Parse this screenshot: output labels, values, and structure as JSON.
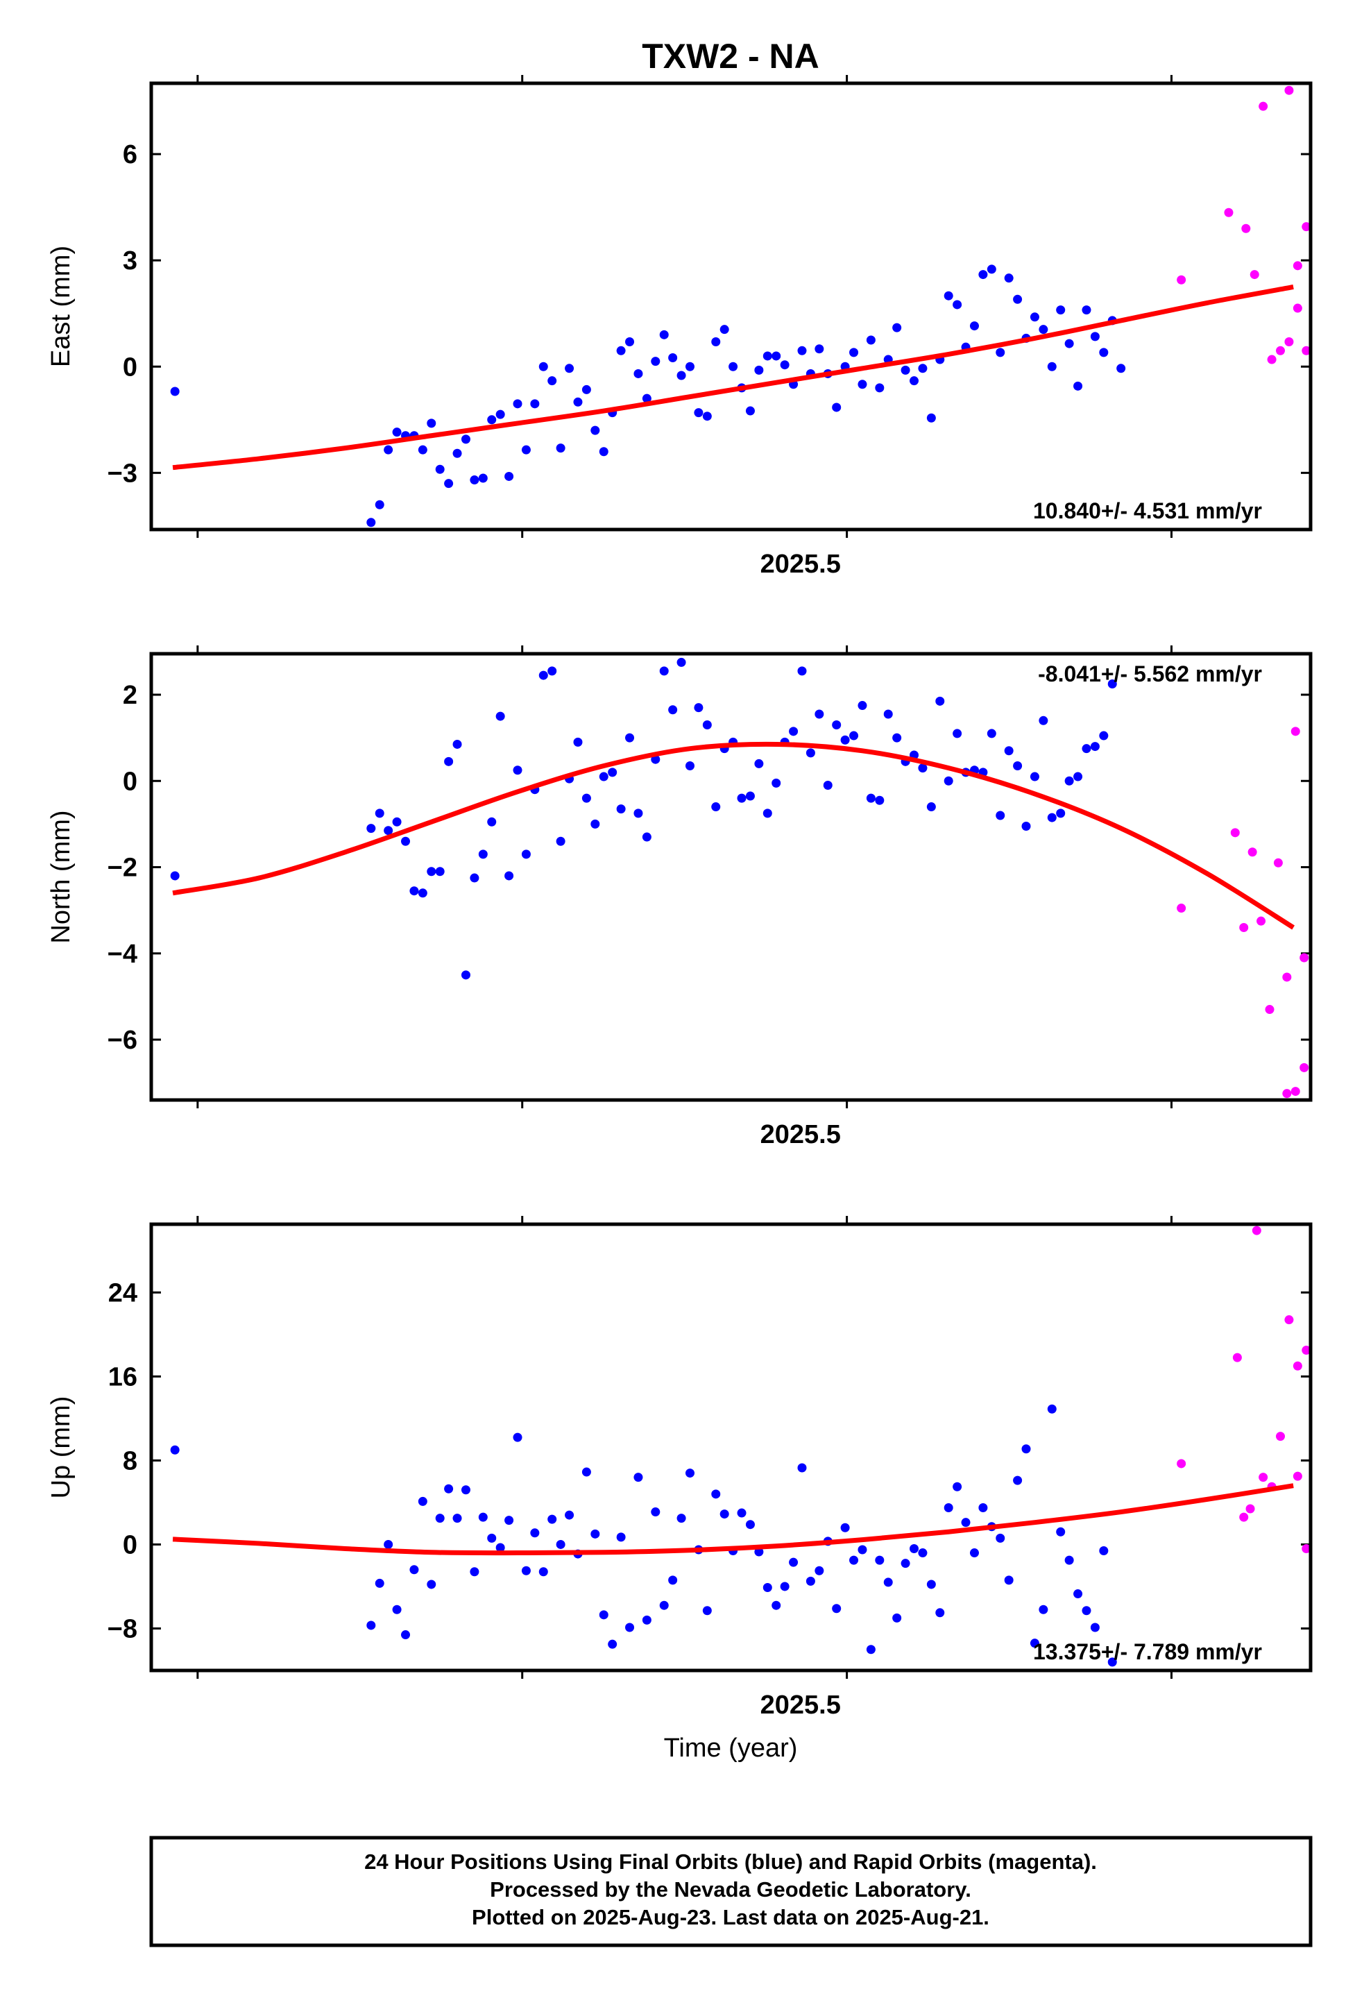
{
  "title": "TXW2 - NA",
  "xlabel": "Time (year)",
  "footer": [
    "24 Hour Positions Using Final Orbits (blue) and Rapid Orbits (magenta).",
    "Processed by the Nevada Geodetic Laboratory.",
    "Plotted on 2025-Aug-23. Last data on 2025-Aug-21."
  ],
  "colors": {
    "final": "#0000ff",
    "rapid": "#ff00ff",
    "fit": "#ff0000",
    "frame": "#000000"
  },
  "chart_data": [
    {
      "type": "scatter",
      "name": "east",
      "ylabel": "East (mm)",
      "rate_label": "10.840+/- 4.531 mm/yr",
      "rate_position": "bottom-right",
      "xlim": [
        2025.13,
        2025.668
      ],
      "ylim": [
        -4.6,
        8.0
      ],
      "yticks": [
        -3,
        0,
        3,
        6
      ],
      "ytick_labels": [
        "−3",
        "0",
        "3",
        "6"
      ],
      "xticks": [
        2025.5
      ],
      "xtick_labels": [
        "2025.5"
      ],
      "fit": {
        "x": [
          2025.14,
          2025.18,
          2025.22,
          2025.26,
          2025.3,
          2025.34,
          2025.38,
          2025.42,
          2025.46,
          2025.5,
          2025.54,
          2025.58,
          2025.62,
          2025.66
        ],
        "y": [
          -2.85,
          -2.6,
          -2.3,
          -1.95,
          -1.6,
          -1.25,
          -0.85,
          -0.45,
          -0.05,
          0.35,
          0.8,
          1.3,
          1.8,
          2.25
        ]
      },
      "final": {
        "x": [
          2025.141,
          2025.232,
          2025.236,
          2025.24,
          2025.244,
          2025.248,
          2025.252,
          2025.256,
          2025.26,
          2025.264,
          2025.268,
          2025.272,
          2025.276,
          2025.28,
          2025.284,
          2025.288,
          2025.292,
          2025.296,
          2025.3,
          2025.304,
          2025.308,
          2025.312,
          2025.316,
          2025.32,
          2025.324,
          2025.328,
          2025.332,
          2025.336,
          2025.34,
          2025.344,
          2025.348,
          2025.352,
          2025.356,
          2025.36,
          2025.364,
          2025.368,
          2025.372,
          2025.376,
          2025.38,
          2025.384,
          2025.388,
          2025.392,
          2025.396,
          2025.4,
          2025.404,
          2025.408,
          2025.412,
          2025.416,
          2025.42,
          2025.424,
          2025.428,
          2025.432,
          2025.436,
          2025.44,
          2025.444,
          2025.448,
          2025.452,
          2025.456,
          2025.46,
          2025.464,
          2025.468,
          2025.472,
          2025.476,
          2025.48,
          2025.484,
          2025.488,
          2025.492,
          2025.496,
          2025.5,
          2025.504,
          2025.508,
          2025.512,
          2025.516,
          2025.52,
          2025.524,
          2025.528,
          2025.532,
          2025.536,
          2025.54,
          2025.544,
          2025.548,
          2025.552,
          2025.556,
          2025.56,
          2025.564,
          2025.568,
          2025.572,
          2025.576,
          2025.58,
          2025.584,
          2025.588,
          2025.592,
          2025.596,
          2025.6,
          2025.604,
          2025.608,
          2025.612
        ],
        "y": [
          -0.7,
          -4.4,
          -3.9,
          -2.35,
          -1.85,
          -1.95,
          -1.95,
          -2.35,
          -1.6,
          -2.9,
          -3.3,
          -2.45,
          -2.05,
          -3.2,
          -3.15,
          -1.5,
          -1.35,
          -3.1,
          -1.05,
          -2.35,
          -1.05,
          0.0,
          -0.4,
          -2.3,
          -0.05,
          -1.0,
          -0.65,
          -1.8,
          -2.4,
          -1.3,
          0.45,
          0.7,
          -0.2,
          -0.9,
          0.15,
          0.9,
          0.25,
          -0.25,
          0.0,
          -1.3,
          -1.4,
          0.7,
          1.05,
          0.0,
          -0.6,
          -1.25,
          -0.1,
          0.3,
          0.3,
          0.05,
          -0.5,
          0.45,
          -0.2,
          0.5,
          -0.2,
          -1.15,
          0.0,
          0.4,
          -0.5,
          0.75,
          -0.6,
          0.2,
          1.1,
          -0.1,
          -0.4,
          -0.05,
          -1.45,
          0.2,
          2.0,
          1.75,
          0.55,
          1.15,
          2.6,
          2.75,
          0.4,
          2.5,
          1.9,
          0.8,
          1.4,
          1.05,
          0.0,
          1.6,
          0.65,
          -0.55,
          1.6,
          0.85,
          0.4,
          1.3,
          -0.05,
          0.45,
          0.1,
          0.0,
          0.3,
          0.65,
          0.85,
          0.2,
          0.55
        ],
        "keep": 89
      },
      "rapid": {
        "x": [
          2025.608,
          2025.638,
          2025.642,
          2025.646,
          2025.65,
          2025.654,
          2025.658,
          2025.662,
          2025.666,
          2025.63
        ],
        "y": [
          2.45,
          3.9,
          2.6,
          7.35,
          0.2,
          0.45,
          7.8,
          2.85,
          0.45,
          4.35
        ],
        "extra_x": [
          2025.658,
          2025.662,
          2025.666
        ],
        "extra_y": [
          0.7,
          1.65,
          3.95
        ]
      }
    },
    {
      "type": "scatter",
      "name": "north",
      "ylabel": "North (mm)",
      "rate_label": "-8.041+/- 5.562 mm/yr",
      "rate_position": "top-right",
      "xlim": [
        2025.13,
        2025.668
      ],
      "ylim": [
        -7.4,
        2.95
      ],
      "yticks": [
        -6,
        -4,
        -2,
        0,
        2
      ],
      "ytick_labels": [
        "−6",
        "−4",
        "−2",
        "0",
        "2"
      ],
      "xticks": [
        2025.5
      ],
      "xtick_labels": [
        "2025.5"
      ],
      "fit": {
        "x": [
          2025.14,
          2025.18,
          2025.22,
          2025.26,
          2025.3,
          2025.34,
          2025.38,
          2025.42,
          2025.46,
          2025.5,
          2025.54,
          2025.58,
          2025.62,
          2025.66
        ],
        "y": [
          -2.6,
          -2.25,
          -1.65,
          -0.95,
          -0.25,
          0.35,
          0.75,
          0.85,
          0.7,
          0.3,
          -0.3,
          -1.1,
          -2.15,
          -3.4
        ]
      },
      "final": {
        "x": [
          2025.141,
          2025.232,
          2025.236,
          2025.24,
          2025.244,
          2025.248,
          2025.252,
          2025.256,
          2025.26,
          2025.264,
          2025.268,
          2025.272,
          2025.276,
          2025.28,
          2025.284,
          2025.288,
          2025.292,
          2025.296,
          2025.3,
          2025.304,
          2025.308,
          2025.312,
          2025.316,
          2025.32,
          2025.324,
          2025.328,
          2025.332,
          2025.336,
          2025.34,
          2025.344,
          2025.348,
          2025.352,
          2025.356,
          2025.36,
          2025.364,
          2025.368,
          2025.372,
          2025.376,
          2025.38,
          2025.384,
          2025.388,
          2025.392,
          2025.396,
          2025.4,
          2025.404,
          2025.408,
          2025.412,
          2025.416,
          2025.42,
          2025.424,
          2025.428,
          2025.432,
          2025.436,
          2025.44,
          2025.444,
          2025.448,
          2025.452,
          2025.456,
          2025.46,
          2025.464,
          2025.468,
          2025.472,
          2025.476,
          2025.48,
          2025.484,
          2025.488,
          2025.492,
          2025.496,
          2025.5,
          2025.504,
          2025.508,
          2025.512,
          2025.516,
          2025.52,
          2025.524,
          2025.528,
          2025.532,
          2025.536,
          2025.54,
          2025.544,
          2025.548,
          2025.552,
          2025.556,
          2025.56,
          2025.564,
          2025.568,
          2025.572,
          2025.576,
          2025.58,
          2025.584,
          2025.588,
          2025.592,
          2025.596,
          2025.6,
          2025.604
        ],
        "y": [
          -2.2,
          -1.1,
          -0.75,
          -1.15,
          -0.95,
          -1.4,
          -2.55,
          -2.6,
          -2.1,
          -2.1,
          0.45,
          0.85,
          -4.5,
          -2.25,
          -1.7,
          -0.95,
          1.5,
          -2.2,
          0.25,
          -1.7,
          -0.2,
          2.45,
          2.55,
          -1.4,
          0.05,
          0.9,
          -0.4,
          -1.0,
          0.1,
          0.2,
          -0.65,
          1.0,
          -0.75,
          -1.3,
          0.5,
          2.55,
          1.65,
          2.75,
          0.35,
          1.7,
          1.3,
          -0.6,
          0.75,
          0.9,
          -0.4,
          -0.35,
          0.4,
          -0.75,
          -0.05,
          0.9,
          1.15,
          2.55,
          0.65,
          1.55,
          -0.1,
          1.3,
          0.95,
          1.05,
          1.75,
          -0.4,
          -0.45,
          1.55,
          1.0,
          0.45,
          0.6,
          0.3,
          -0.6,
          1.85,
          0.0,
          1.1,
          0.2,
          0.25,
          0.2,
          1.1,
          -0.8,
          0.7,
          0.35,
          -1.05,
          0.1,
          1.4,
          -0.85,
          -0.75,
          0.0,
          0.1,
          0.75,
          0.8,
          1.05,
          2.25,
          0.9,
          0.5,
          0.3,
          0.0,
          0.3,
          0.55,
          0.1
        ],
        "keep": 88
      },
      "rapid": {
        "x": [
          2025.608,
          2025.637,
          2025.641,
          2025.645,
          2025.649,
          2025.653,
          2025.657,
          2025.661,
          2025.665,
          2025.633
        ],
        "y": [
          -2.95,
          -3.4,
          -1.65,
          -3.25,
          -5.3,
          -1.9,
          -4.55,
          -7.2,
          -4.1,
          -1.2
        ],
        "extra_x": [
          2025.657,
          2025.661,
          2025.665
        ],
        "extra_y": [
          -7.25,
          1.15,
          -6.65
        ]
      }
    },
    {
      "type": "scatter",
      "name": "up",
      "ylabel": "Up (mm)",
      "rate_label": "13.375+/- 7.789 mm/yr",
      "rate_position": "bottom-right",
      "xlim": [
        2025.13,
        2025.668
      ],
      "ylim": [
        -12.0,
        30.5
      ],
      "yticks": [
        -8,
        0,
        8,
        16,
        24
      ],
      "ytick_labels": [
        "−8",
        "0",
        "8",
        "16",
        "24"
      ],
      "xticks": [
        2025.5
      ],
      "xtick_labels": [
        "2025.5"
      ],
      "fit": {
        "x": [
          2025.14,
          2025.18,
          2025.22,
          2025.26,
          2025.3,
          2025.34,
          2025.38,
          2025.42,
          2025.46,
          2025.5,
          2025.54,
          2025.58,
          2025.62,
          2025.66
        ],
        "y": [
          0.5,
          0.1,
          -0.4,
          -0.75,
          -0.8,
          -0.75,
          -0.55,
          -0.15,
          0.45,
          1.2,
          2.1,
          3.1,
          4.3,
          5.6
        ]
      },
      "final": {
        "x": [
          2025.141,
          2025.232,
          2025.236,
          2025.24,
          2025.244,
          2025.248,
          2025.252,
          2025.256,
          2025.26,
          2025.264,
          2025.268,
          2025.272,
          2025.276,
          2025.28,
          2025.284,
          2025.288,
          2025.292,
          2025.296,
          2025.3,
          2025.304,
          2025.308,
          2025.312,
          2025.316,
          2025.32,
          2025.324,
          2025.328,
          2025.332,
          2025.336,
          2025.34,
          2025.344,
          2025.348,
          2025.352,
          2025.356,
          2025.36,
          2025.364,
          2025.368,
          2025.372,
          2025.376,
          2025.38,
          2025.384,
          2025.388,
          2025.392,
          2025.396,
          2025.4,
          2025.404,
          2025.408,
          2025.412,
          2025.416,
          2025.42,
          2025.424,
          2025.428,
          2025.432,
          2025.436,
          2025.44,
          2025.444,
          2025.448,
          2025.452,
          2025.456,
          2025.46,
          2025.464,
          2025.468,
          2025.472,
          2025.476,
          2025.48,
          2025.484,
          2025.488,
          2025.492,
          2025.496,
          2025.5,
          2025.504,
          2025.508,
          2025.512,
          2025.516,
          2025.52,
          2025.524,
          2025.528,
          2025.532,
          2025.536,
          2025.54,
          2025.544,
          2025.548,
          2025.552,
          2025.556,
          2025.56,
          2025.564,
          2025.568,
          2025.572,
          2025.576,
          2025.58,
          2025.584,
          2025.588,
          2025.592,
          2025.596,
          2025.6,
          2025.604
        ],
        "y": [
          9.0,
          -7.7,
          -3.7,
          0.0,
          -6.2,
          -8.6,
          -2.4,
          4.1,
          -3.8,
          2.5,
          5.3,
          2.5,
          5.2,
          -2.6,
          2.6,
          0.6,
          -0.3,
          2.3,
          10.2,
          -2.5,
          1.1,
          -2.6,
          2.4,
          0.0,
          2.8,
          -0.9,
          6.9,
          1.0,
          -6.7,
          -9.5,
          0.7,
          -7.9,
          6.4,
          -7.2,
          3.1,
          -5.8,
          -3.4,
          2.5,
          6.8,
          -0.5,
          -6.3,
          4.8,
          2.9,
          -0.6,
          3.0,
          1.9,
          -0.7,
          -4.1,
          -5.8,
          -4.0,
          -1.7,
          7.3,
          -3.5,
          -2.5,
          0.3,
          -6.1,
          1.6,
          -1.5,
          -0.5,
          -10.0,
          -1.5,
          -3.6,
          -7.0,
          -1.8,
          -0.4,
          -0.8,
          -3.8,
          -6.5,
          3.5,
          5.5,
          2.1,
          -0.8,
          3.5,
          1.7,
          0.6,
          -3.4,
          6.1,
          9.1,
          -9.4,
          -6.2,
          12.9,
          1.2,
          -1.5,
          -4.7,
          -6.3,
          -7.9,
          -0.6,
          -11.2,
          3.2,
          2.4,
          1.5,
          -0.9,
          3.8,
          1.1,
          0.2
        ],
        "keep": 88
      },
      "rapid": {
        "x": [
          2025.608,
          2025.637,
          2025.64,
          2025.643,
          2025.646,
          2025.65,
          2025.654,
          2025.658,
          2025.662,
          2025.666,
          2025.634
        ],
        "y": [
          7.7,
          2.6,
          3.4,
          29.9,
          6.4,
          5.5,
          10.3,
          21.4,
          6.5,
          -0.4,
          17.8
        ],
        "extra_x": [
          2025.662,
          2025.666
        ],
        "extra_y": [
          17.0,
          18.5
        ]
      }
    }
  ]
}
